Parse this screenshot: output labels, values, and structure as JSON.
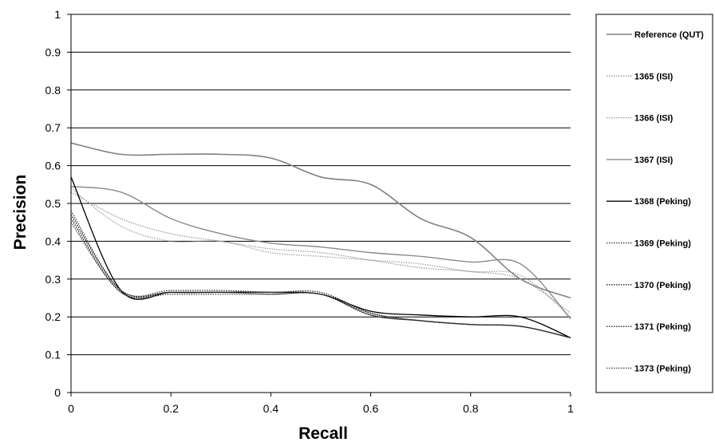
{
  "chart_data": {
    "type": "line",
    "xlabel": "Recall",
    "ylabel": "Precision",
    "xlim": [
      0,
      1
    ],
    "ylim": [
      0,
      1
    ],
    "x_ticks": [
      "0",
      "0.2",
      "0.4",
      "0.6",
      "0.8",
      "1"
    ],
    "y_ticks": [
      "0",
      "0.1",
      "0.2",
      "0.3",
      "0.4",
      "0.5",
      "0.6",
      "0.7",
      "0.8",
      "0.9",
      "1"
    ],
    "grid": "horizontal",
    "legend_position": "right",
    "x": [
      0,
      0.1,
      0.2,
      0.3,
      0.4,
      0.5,
      0.6,
      0.7,
      0.8,
      0.9,
      1.0
    ],
    "series": [
      {
        "name": "Reference (QUT)",
        "color": "#808080",
        "dash": "solid",
        "width": 1.6,
        "values": [
          0.66,
          0.63,
          0.63,
          0.63,
          0.62,
          0.57,
          0.55,
          0.46,
          0.41,
          0.3,
          0.25
        ]
      },
      {
        "name": "1365 (ISI)",
        "color": "#a0a0a0",
        "dash": "dotted",
        "width": 1.3,
        "values": [
          0.54,
          0.44,
          0.4,
          0.4,
          0.37,
          0.36,
          0.35,
          0.34,
          0.32,
          0.31,
          0.2
        ]
      },
      {
        "name": "1366 (ISI)",
        "color": "#9a9a9a",
        "dash": "dotted",
        "width": 1.3,
        "values": [
          0.53,
          0.46,
          0.42,
          0.4,
          0.38,
          0.37,
          0.35,
          0.33,
          0.32,
          0.3,
          0.21
        ]
      },
      {
        "name": "1367 (ISI)",
        "color": "#8a8a8a",
        "dash": "solid",
        "width": 1.4,
        "values": [
          0.545,
          0.53,
          0.46,
          0.42,
          0.395,
          0.385,
          0.37,
          0.36,
          0.345,
          0.34,
          0.195
        ]
      },
      {
        "name": "1368 (Peking)",
        "color": "#000000",
        "dash": "solid",
        "width": 1.3,
        "values": [
          0.57,
          0.27,
          0.265,
          0.265,
          0.265,
          0.26,
          0.215,
          0.205,
          0.2,
          0.2,
          0.145
        ]
      },
      {
        "name": "1369 (Peking)",
        "color": "#333333",
        "dash": "dotted",
        "width": 1.3,
        "values": [
          0.48,
          0.27,
          0.27,
          0.27,
          0.265,
          0.265,
          0.21,
          0.19,
          0.18,
          0.175,
          0.145
        ]
      },
      {
        "name": "1370 (Peking)",
        "color": "#222222",
        "dash": "dotted",
        "width": 1.3,
        "values": [
          0.47,
          0.27,
          0.265,
          0.265,
          0.265,
          0.26,
          0.21,
          0.19,
          0.18,
          0.175,
          0.145
        ]
      },
      {
        "name": "1371 (Peking)",
        "color": "#111111",
        "dash": "dotted",
        "width": 1.3,
        "values": [
          0.46,
          0.265,
          0.265,
          0.265,
          0.26,
          0.26,
          0.205,
          0.19,
          0.18,
          0.175,
          0.145
        ]
      },
      {
        "name": "1373 (Peking)",
        "color": "#444444",
        "dash": "dotted",
        "width": 1.3,
        "values": [
          0.45,
          0.265,
          0.26,
          0.26,
          0.26,
          0.26,
          0.205,
          0.19,
          0.18,
          0.175,
          0.145
        ]
      }
    ]
  }
}
